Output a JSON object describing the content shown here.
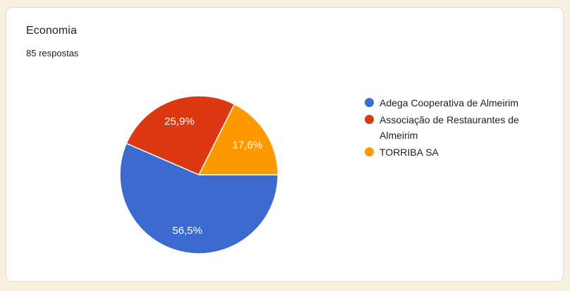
{
  "page": {
    "background_color": "#F8F0DE"
  },
  "card": {
    "title": "Economia",
    "subtitle": "85 respostas",
    "background_color": "#FFFFFF",
    "border_color": "#DADCE0"
  },
  "chart_data": {
    "type": "pie",
    "title": "Economia",
    "subtitle": "85 respostas",
    "total_responses": 85,
    "labels": [
      "Adega Cooperativa de Almeirim",
      "Associação de Restaurantes de Almeirim",
      "TORRIBA SA"
    ],
    "values_percent": [
      56.5,
      25.9,
      17.6
    ],
    "value_labels": [
      "56,5%",
      "25,9%",
      "17,6%"
    ],
    "colors": [
      "#3C6BD0",
      "#DC3912",
      "#FF9900"
    ],
    "slice_label_color": "#FFFFFF",
    "start_angle": "east-clockwise",
    "legend_position": "right"
  },
  "legend": {
    "items": [
      {
        "label": "Adega Cooperativa de Almeirim",
        "color": "#3C6BD0"
      },
      {
        "label": "Associação de Restaurantes de Almeirim",
        "color": "#DC3912"
      },
      {
        "label": "TORRIBA SA",
        "color": "#FF9900"
      }
    ]
  }
}
